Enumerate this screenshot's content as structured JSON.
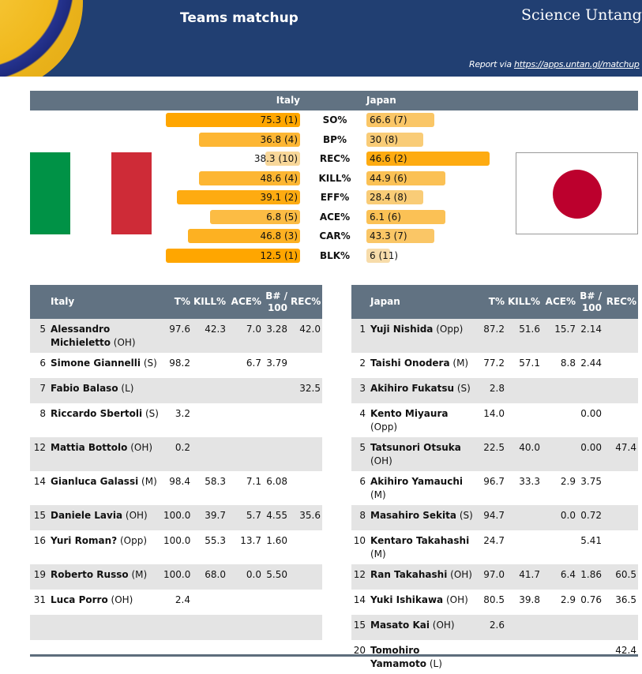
{
  "header": {
    "title": "Teams matchup",
    "brand": "Science Untangled",
    "report_prefix": "Report via",
    "report_link": "https://apps.untan.gl/matchup"
  },
  "matchup": {
    "team_left": "Italy",
    "team_right": "Japan",
    "colors": {
      "rank_best": "#ffa600",
      "rank_worst": "#f7dcaa"
    },
    "stats": [
      {
        "label": "SO%",
        "left": "75.3 (1)",
        "left_rank": 1,
        "right": "66.6 (7)",
        "right_rank": 7
      },
      {
        "label": "BP%",
        "left": "36.8 (4)",
        "left_rank": 4,
        "right": "30 (8)",
        "right_rank": 8
      },
      {
        "label": "REC%",
        "left": "38.3 (10)",
        "left_rank": 10,
        "right": "46.6 (2)",
        "right_rank": 2
      },
      {
        "label": "KILL%",
        "left": "48.6 (4)",
        "left_rank": 4,
        "right": "44.9 (6)",
        "right_rank": 6
      },
      {
        "label": "EFF%",
        "left": "39.1 (2)",
        "left_rank": 2,
        "right": "28.4 (8)",
        "right_rank": 8
      },
      {
        "label": "ACE%",
        "left": "6.8 (5)",
        "left_rank": 5,
        "right": "6.1 (6)",
        "right_rank": 6
      },
      {
        "label": "CAR%",
        "left": "46.8 (3)",
        "left_rank": 3,
        "right": "43.3 (7)",
        "right_rank": 7
      },
      {
        "label": "BLK%",
        "left": "12.5 (1)",
        "left_rank": 1,
        "right": "6 (11)",
        "right_rank": 11
      }
    ]
  },
  "flags": {
    "left": [
      "#009246",
      "#ffffff",
      "#ce2b37"
    ],
    "right_sun": "#bc002d"
  },
  "players": {
    "columns": [
      "T%",
      "KILL%",
      "ACE%",
      "B# / 100",
      "REC%"
    ],
    "left_team": "Italy",
    "right_team": "Japan",
    "left": [
      {
        "num": "5",
        "name": "Alessandro Michieletto",
        "pos": "(OH)",
        "vals": [
          "97.6",
          "42.3",
          "7.0",
          "3.28",
          "42.0"
        ]
      },
      {
        "num": "6",
        "name": "Simone Giannelli",
        "pos": "(S)",
        "vals": [
          "98.2",
          "",
          "6.7",
          "3.79",
          ""
        ]
      },
      {
        "num": "7",
        "name": "Fabio Balaso",
        "pos": "(L)",
        "vals": [
          "",
          "",
          "",
          "",
          "32.5"
        ]
      },
      {
        "num": "8",
        "name": "Riccardo Sbertoli",
        "pos": "(S)",
        "vals": [
          "3.2",
          "",
          "",
          "",
          ""
        ]
      },
      {
        "num": "12",
        "name": "Mattia Bottolo",
        "pos": "(OH)",
        "vals": [
          "0.2",
          "",
          "",
          "",
          ""
        ]
      },
      {
        "num": "14",
        "name": "Gianluca Galassi",
        "pos": "(M)",
        "vals": [
          "98.4",
          "58.3",
          "7.1",
          "6.08",
          ""
        ]
      },
      {
        "num": "15",
        "name": "Daniele Lavia",
        "pos": "(OH)",
        "vals": [
          "100.0",
          "39.7",
          "5.7",
          "4.55",
          "35.6"
        ]
      },
      {
        "num": "16",
        "name": "Yuri Roman?",
        "pos": "(Opp)",
        "vals": [
          "100.0",
          "55.3",
          "13.7",
          "1.60",
          ""
        ]
      },
      {
        "num": "19",
        "name": "Roberto Russo",
        "pos": "(M)",
        "vals": [
          "100.0",
          "68.0",
          "0.0",
          "5.50",
          ""
        ]
      },
      {
        "num": "31",
        "name": "Luca Porro",
        "pos": "(OH)",
        "vals": [
          "2.4",
          "",
          "",
          "",
          ""
        ]
      }
    ],
    "right": [
      {
        "num": "1",
        "name": "Yuji Nishida",
        "pos": "(Opp)",
        "vals": [
          "87.2",
          "51.6",
          "15.7",
          "2.14",
          ""
        ]
      },
      {
        "num": "2",
        "name": "Taishi Onodera",
        "pos": "(M)",
        "vals": [
          "77.2",
          "57.1",
          "8.8",
          "2.44",
          ""
        ]
      },
      {
        "num": "3",
        "name": "Akihiro Fukatsu",
        "pos": "(S)",
        "vals": [
          "2.8",
          "",
          "",
          "",
          ""
        ]
      },
      {
        "num": "4",
        "name": "Kento Miyaura",
        "pos": "(Opp)",
        "vals": [
          "14.0",
          "",
          "",
          "0.00",
          ""
        ]
      },
      {
        "num": "5",
        "name": "Tatsunori Otsuka",
        "pos": "(OH)",
        "vals": [
          "22.5",
          "40.0",
          "",
          "0.00",
          "47.4"
        ]
      },
      {
        "num": "6",
        "name": "Akihiro Yamauchi",
        "pos": "(M)",
        "vals": [
          "96.7",
          "33.3",
          "2.9",
          "3.75",
          ""
        ]
      },
      {
        "num": "8",
        "name": "Masahiro Sekita",
        "pos": "(S)",
        "vals": [
          "94.7",
          "",
          "0.0",
          "0.72",
          ""
        ]
      },
      {
        "num": "10",
        "name": "Kentaro Takahashi",
        "pos": "(M)",
        "vals": [
          "24.7",
          "",
          "",
          "5.41",
          ""
        ]
      },
      {
        "num": "12",
        "name": "Ran Takahashi",
        "pos": "(OH)",
        "vals": [
          "97.0",
          "41.7",
          "6.4",
          "1.86",
          "60.5"
        ]
      },
      {
        "num": "14",
        "name": "Yuki Ishikawa",
        "pos": "(OH)",
        "vals": [
          "80.5",
          "39.8",
          "2.9",
          "0.76",
          "36.5"
        ]
      },
      {
        "num": "15",
        "name": "Masato Kai",
        "pos": "(OH)",
        "vals": [
          "2.6",
          "",
          "",
          "",
          ""
        ]
      },
      {
        "num": "20",
        "name": "Tomohiro Yamamoto",
        "pos": "(L)",
        "vals": [
          "",
          "",
          "",
          "",
          "42.4"
        ]
      }
    ]
  }
}
